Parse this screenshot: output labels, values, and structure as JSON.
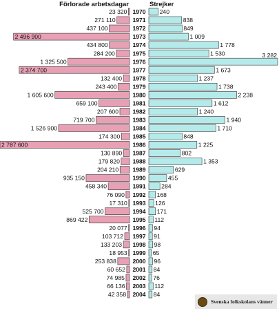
{
  "chart_data": {
    "type": "bar",
    "layout": "butterfly",
    "series": [
      {
        "name": "Förlorade arbetsdagar",
        "color": "#e8a0b4",
        "values": [
          23320,
          271110,
          437100,
          2496900,
          434800,
          284200,
          1325500,
          2374700,
          132400,
          243400,
          1605600,
          659100,
          207600,
          719700,
          1526900,
          174300,
          2787600,
          130890,
          179820,
          204210,
          935150,
          458340,
          76090,
          17310,
          525700,
          869422,
          20077,
          103712,
          133203,
          18953,
          253838,
          60652,
          74985,
          66136,
          42358
        ],
        "labels": [
          "23 320",
          "271 110",
          "437 100",
          "2 496 900",
          "434 800",
          "284 200",
          "1 325 500",
          "2 374 700",
          "132 400",
          "243 400",
          "1 605 600",
          "659 100",
          "207 600",
          "719 700",
          "1 526 900",
          "174 300",
          "2 787 600",
          "130 890",
          "179 820",
          "204 210",
          "935 150",
          "458 340",
          "76 090",
          "17 310",
          "525 700",
          "869 422",
          "20 077",
          "103 712",
          "133 203",
          "18 953",
          "253 838",
          "60 652",
          "74 985",
          "66 136",
          "42 358"
        ]
      },
      {
        "name": "Strejker",
        "color": "#b4eaea",
        "values": [
          240,
          838,
          849,
          1009,
          1778,
          1530,
          3282,
          1673,
          1237,
          1738,
          2238,
          1612,
          1240,
          1940,
          1710,
          848,
          1225,
          802,
          1353,
          629,
          455,
          284,
          168,
          126,
          171,
          112,
          94,
          91,
          98,
          65,
          96,
          84,
          76,
          112,
          84
        ],
        "labels": [
          "240",
          "838",
          "849",
          "1 009",
          "1 778",
          "1 530",
          "3 282",
          "1 673",
          "1 237",
          "1 738",
          "2 238",
          "1 612",
          "1 240",
          "1 940",
          "1 710",
          "848",
          "1 225",
          "802",
          "1 353",
          "629",
          "455",
          "284",
          "168",
          "126",
          "171",
          "112",
          "94",
          "91",
          "98",
          "65",
          "96",
          "84",
          "76",
          "112",
          "84"
        ]
      }
    ],
    "categories": [
      "1970",
      "1971",
      "1972",
      "1973",
      "1974",
      "1975",
      "1976",
      "1977",
      "1978",
      "1979",
      "1980",
      "1981",
      "1982",
      "1983",
      "1984",
      "1985",
      "1986",
      "1987",
      "1988",
      "1989",
      "1990",
      "1991",
      "1992",
      "1993",
      "1994",
      "1995",
      "1996",
      "1997",
      "1998",
      "1999",
      "2000",
      "2001",
      "2002",
      "2003",
      "2004"
    ],
    "left_max": 2787600,
    "right_max": 3282,
    "bar_stroke": "#333333"
  },
  "watermark": {
    "text": "Svenska folkskolans vänner"
  }
}
